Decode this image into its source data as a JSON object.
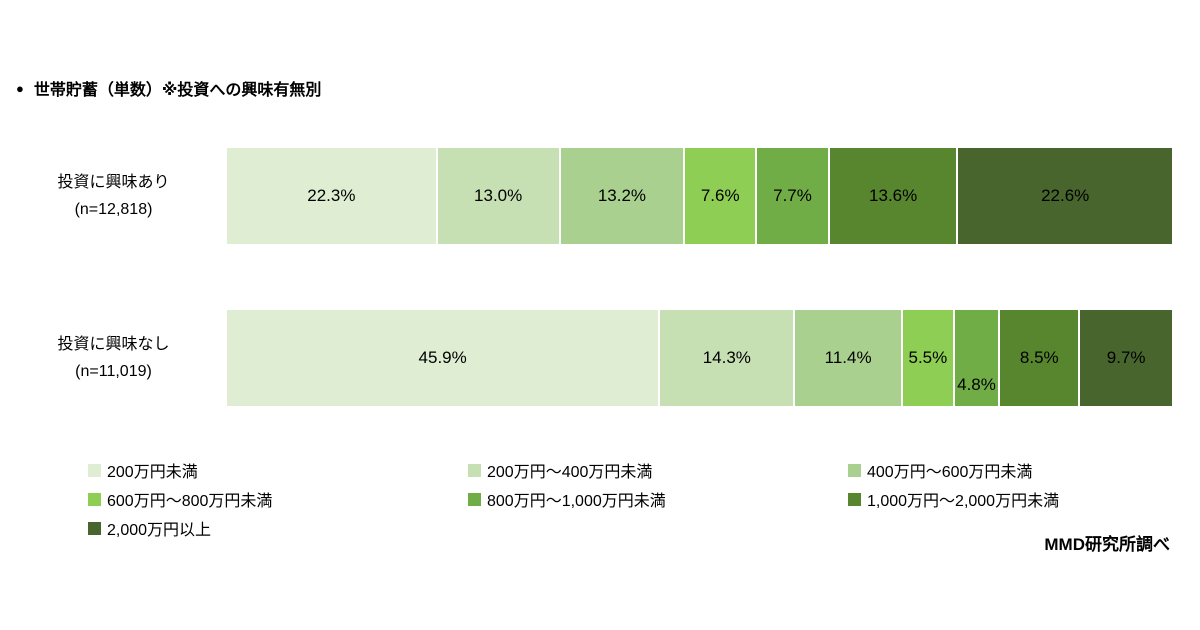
{
  "header": {
    "bullet": "●",
    "title": "世帯貯蓄（単数）※投資への興味有無別"
  },
  "source": "MMD研究所調べ",
  "chart_data": {
    "type": "bar",
    "stacked": true,
    "orientation": "horizontal",
    "value_suffix": "%",
    "categories": [
      "200万円未満",
      "200万円～400万円未満",
      "400万円～600万円未満",
      "600万円～800万円未満",
      "800万円～1,000万円未満",
      "1,000万円～2,000万円未満",
      "2,000万円以上"
    ],
    "colors": [
      "#dfeed3",
      "#c6e0b4",
      "#a9d08e",
      "#8fce55",
      "#70ad47",
      "#57862f",
      "#47652c"
    ],
    "series": [
      {
        "name": "投資に興味あり",
        "n_label": "(n=12,818)",
        "values": [
          22.3,
          13.0,
          13.2,
          7.6,
          7.7,
          13.6,
          22.6
        ]
      },
      {
        "name": "投資に興味なし",
        "n_label": "(n=11,019)",
        "values": [
          45.9,
          14.3,
          11.4,
          5.5,
          4.8,
          8.5,
          9.7
        ]
      }
    ],
    "legend_position": "bottom",
    "grid": false,
    "xlim": [
      0,
      100
    ]
  }
}
